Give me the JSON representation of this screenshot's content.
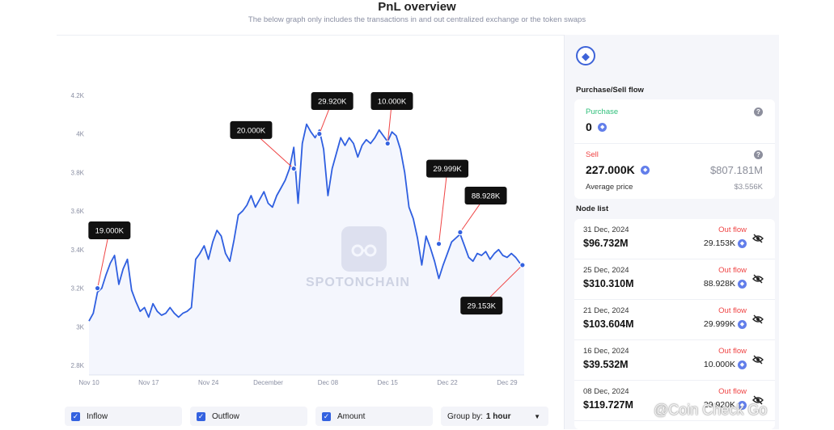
{
  "header": {
    "title": "PnL overview",
    "subtitle": "The below graph only includes the transactions in and out centralized exchange or the token swaps"
  },
  "chart_data": {
    "type": "line",
    "title": "PnL overview",
    "xlabel": "",
    "ylabel": "",
    "ylim": [
      2.75,
      4.3
    ],
    "y_ticks": [
      "4.2K",
      "4K",
      "3.8K",
      "3.6K",
      "3.4K",
      "3.2K",
      "3K",
      "2.8K"
    ],
    "y_tick_values": [
      4.2,
      4.0,
      3.8,
      3.6,
      3.4,
      3.2,
      3.0,
      2.8
    ],
    "x_ticks": [
      "Nov 10",
      "Nov 17",
      "Nov 24",
      "December",
      "Dec 08",
      "Dec 15",
      "Dec 22",
      "Dec 29"
    ],
    "x_tick_positions": [
      0,
      7,
      14,
      21,
      28,
      35,
      42,
      49
    ],
    "x_range": [
      0,
      51
    ],
    "series": [
      {
        "color": "#2f5fe0",
        "points": [
          [
            0,
            3.03
          ],
          [
            0.5,
            3.07
          ],
          [
            1.0,
            3.18
          ],
          [
            1.5,
            3.2
          ],
          [
            2.0,
            3.27
          ],
          [
            2.5,
            3.33
          ],
          [
            3.0,
            3.37
          ],
          [
            3.5,
            3.22
          ],
          [
            4.0,
            3.3
          ],
          [
            4.5,
            3.35
          ],
          [
            5.0,
            3.19
          ],
          [
            5.5,
            3.13
          ],
          [
            6.0,
            3.08
          ],
          [
            6.5,
            3.1
          ],
          [
            7.0,
            3.05
          ],
          [
            7.5,
            3.12
          ],
          [
            8.0,
            3.08
          ],
          [
            8.5,
            3.06
          ],
          [
            9.0,
            3.07
          ],
          [
            9.5,
            3.1
          ],
          [
            10.0,
            3.07
          ],
          [
            10.5,
            3.05
          ],
          [
            11.0,
            3.07
          ],
          [
            11.5,
            3.08
          ],
          [
            12.0,
            3.1
          ],
          [
            12.5,
            3.35
          ],
          [
            13.0,
            3.38
          ],
          [
            13.5,
            3.42
          ],
          [
            14.0,
            3.35
          ],
          [
            14.5,
            3.44
          ],
          [
            15.0,
            3.5
          ],
          [
            15.5,
            3.47
          ],
          [
            16.0,
            3.38
          ],
          [
            16.5,
            3.34
          ],
          [
            17.0,
            3.45
          ],
          [
            17.5,
            3.58
          ],
          [
            18.0,
            3.6
          ],
          [
            18.5,
            3.63
          ],
          [
            19.0,
            3.68
          ],
          [
            19.5,
            3.62
          ],
          [
            20.0,
            3.66
          ],
          [
            20.5,
            3.7
          ],
          [
            21.0,
            3.64
          ],
          [
            21.5,
            3.62
          ],
          [
            22.0,
            3.68
          ],
          [
            22.5,
            3.72
          ],
          [
            23.0,
            3.76
          ],
          [
            23.5,
            3.82
          ],
          [
            24.0,
            3.93
          ],
          [
            24.5,
            3.64
          ],
          [
            25.0,
            3.95
          ],
          [
            25.5,
            4.05
          ],
          [
            26.0,
            4.01
          ],
          [
            26.5,
            3.98
          ],
          [
            27.0,
            4.02
          ],
          [
            27.5,
            3.92
          ],
          [
            28.0,
            3.68
          ],
          [
            28.5,
            3.82
          ],
          [
            29.0,
            3.9
          ],
          [
            29.5,
            3.98
          ],
          [
            30.0,
            3.94
          ],
          [
            30.5,
            3.98
          ],
          [
            31.0,
            3.95
          ],
          [
            31.5,
            3.88
          ],
          [
            32.0,
            3.94
          ],
          [
            32.5,
            3.97
          ],
          [
            33.0,
            3.95
          ],
          [
            33.5,
            3.98
          ],
          [
            34.0,
            4.02
          ],
          [
            34.5,
            3.99
          ],
          [
            35.0,
            3.96
          ],
          [
            35.5,
            4.01
          ],
          [
            36.0,
            3.99
          ],
          [
            36.5,
            3.92
          ],
          [
            37.0,
            3.8
          ],
          [
            37.5,
            3.62
          ],
          [
            38.0,
            3.56
          ],
          [
            38.5,
            3.46
          ],
          [
            39.0,
            3.32
          ],
          [
            39.5,
            3.47
          ],
          [
            40.0,
            3.41
          ],
          [
            40.5,
            3.34
          ],
          [
            41.0,
            3.25
          ],
          [
            41.5,
            3.32
          ],
          [
            42.0,
            3.38
          ],
          [
            42.5,
            3.44
          ],
          [
            43.0,
            3.46
          ],
          [
            43.5,
            3.48
          ],
          [
            44.0,
            3.42
          ],
          [
            44.5,
            3.36
          ],
          [
            45.0,
            3.34
          ],
          [
            45.5,
            3.38
          ],
          [
            46.0,
            3.37
          ],
          [
            46.5,
            3.39
          ],
          [
            47.0,
            3.35
          ],
          [
            47.5,
            3.38
          ],
          [
            48.0,
            3.4
          ],
          [
            48.5,
            3.37
          ],
          [
            49.0,
            3.36
          ],
          [
            49.5,
            3.38
          ],
          [
            50.0,
            3.36
          ],
          [
            50.5,
            3.33
          ],
          [
            51.0,
            3.31
          ]
        ]
      }
    ],
    "annotations": [
      {
        "label": "19.000K",
        "x": 1.0,
        "y": 3.2,
        "lx": 2.4,
        "ly": 3.5
      },
      {
        "label": "20.000K",
        "x": 24.0,
        "y": 3.82,
        "lx": 19.0,
        "ly": 4.02
      },
      {
        "label": "29.920K",
        "x": 27.0,
        "y": 4.0,
        "lx": 28.5,
        "ly": 4.17
      },
      {
        "label": "10.000K",
        "x": 35.0,
        "y": 3.95,
        "lx": 35.5,
        "ly": 4.17
      },
      {
        "label": "29.999K",
        "x": 41.0,
        "y": 3.43,
        "lx": 42.0,
        "ly": 3.82
      },
      {
        "label": "88.928K",
        "x": 43.5,
        "y": 3.49,
        "lx": 46.5,
        "ly": 3.68
      },
      {
        "label": "29.153K",
        "x": 50.8,
        "y": 3.32,
        "lx": 46.0,
        "ly": 3.11
      }
    ]
  },
  "controls": {
    "inflow_label": "Inflow",
    "outflow_label": "Outflow",
    "amount_label": "Amount",
    "group_prefix": "Group by:",
    "group_value": "1 hour"
  },
  "panel": {
    "token_icon": "ethereum-icon",
    "flow_title": "Purchase/Sell flow",
    "purchase_label": "Purchase",
    "purchase_value": "0",
    "sell_label": "Sell",
    "sell_value": "227.000K",
    "sell_usd": "$807.181M",
    "avg_label": "Average price",
    "avg_value": "$3.556K",
    "node_list_title": "Node list",
    "nodes": [
      {
        "date": "31 Dec, 2024",
        "flow": "Out flow",
        "amount": "$96.732M",
        "value": "29.153K"
      },
      {
        "date": "25 Dec, 2024",
        "flow": "Out flow",
        "amount": "$310.310M",
        "value": "88.928K"
      },
      {
        "date": "21 Dec, 2024",
        "flow": "Out flow",
        "amount": "$103.604M",
        "value": "29.999K"
      },
      {
        "date": "16 Dec, 2024",
        "flow": "Out flow",
        "amount": "$39.532M",
        "value": "10.000K"
      },
      {
        "date": "08 Dec, 2024",
        "flow": "Out flow",
        "amount": "$119.727M",
        "value": "29.920K"
      }
    ]
  },
  "watermarks": {
    "chart": "SPOTONCHAIN",
    "corner": "@Coin Check Go"
  },
  "colors": {
    "line": "#2f5fe0",
    "accent": "#3462e0",
    "inflow": "#2fbf7a",
    "outflow": "#ef4444"
  }
}
